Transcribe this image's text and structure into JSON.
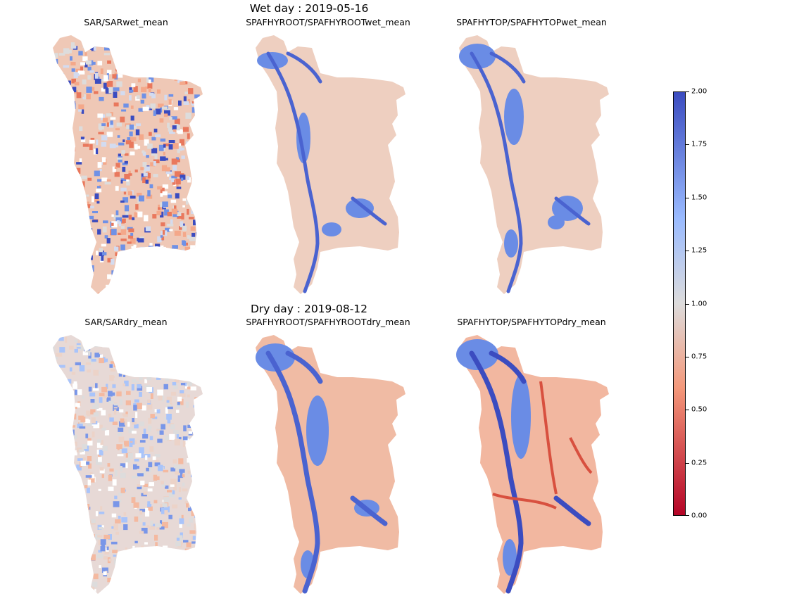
{
  "figure": {
    "wet_title": "Wet day : 2019-05-16",
    "dry_title": "Dry day : 2019-08-12"
  },
  "panels": [
    {
      "title": "SAR/SARwet_mean",
      "row": "wet",
      "style": "sar"
    },
    {
      "title": "SPAFHYROOT/SPAFHYROOTwet_mean",
      "row": "wet",
      "style": "root_wet"
    },
    {
      "title": "SPAFHYTOP/SPAFHYTOPwet_mean",
      "row": "wet",
      "style": "top_wet"
    },
    {
      "title": "SAR/SARdry_mean",
      "row": "dry",
      "style": "sar_dry"
    },
    {
      "title": "SPAFHYROOT/SPAFHYROOTdry_mean",
      "row": "dry",
      "style": "root_dry"
    },
    {
      "title": "SPAFHYTOP/SPAFHYTOPdry_mean",
      "row": "dry",
      "style": "top_dry"
    }
  ],
  "colorbar": {
    "cmap": "coolwarm_r",
    "vmin": 0.0,
    "vmax": 2.0,
    "ticks": [
      "0.00",
      "0.25",
      "0.50",
      "0.75",
      "1.00",
      "1.25",
      "1.50",
      "1.75",
      "2.00"
    ],
    "colors": {
      "low": "#b40426",
      "mid_low": "#f4987a",
      "mid": "#dddcdc",
      "mid_high": "#9abbff",
      "high": "#3b4cc0"
    }
  }
}
